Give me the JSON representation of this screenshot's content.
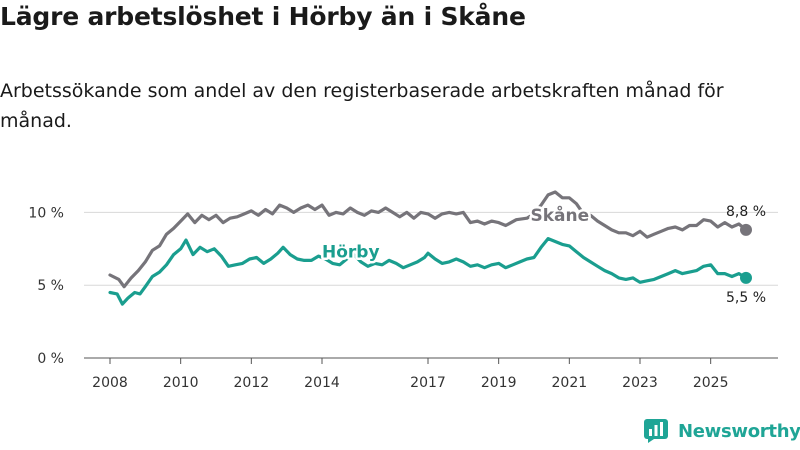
{
  "title": "Lägre arbetslöshet i Hörby än i Skåne",
  "subtitle": "Arbetssökande som andel av den registerbaserade arbetskraften månad för månad.",
  "brand": {
    "name": "Newsworthy",
    "color": "#1fa596"
  },
  "chart_data": {
    "type": "line",
    "ylim": [
      0,
      12.5
    ],
    "xlim": [
      2008,
      2026.6
    ],
    "y_ticks": [
      {
        "value": 0,
        "label": "0 %"
      },
      {
        "value": 5,
        "label": "5 %"
      },
      {
        "value": 10,
        "label": "10 %"
      }
    ],
    "x_ticks": [
      {
        "value": 2008,
        "label": "2008"
      },
      {
        "value": 2010,
        "label": "2010"
      },
      {
        "value": 2012,
        "label": "2012"
      },
      {
        "value": 2014,
        "label": "2014"
      },
      {
        "value": 2017,
        "label": "2017"
      },
      {
        "value": 2019,
        "label": "2019"
      },
      {
        "value": 2021,
        "label": "2021"
      },
      {
        "value": 2023,
        "label": "2023"
      },
      {
        "value": 2025,
        "label": "2025"
      }
    ],
    "grid": true,
    "series": [
      {
        "name": "Skåne",
        "color": "#76747a",
        "end_label": "8,8 %",
        "points": [
          [
            2008.0,
            5.7
          ],
          [
            2008.25,
            5.4
          ],
          [
            2008.4,
            4.9
          ],
          [
            2008.6,
            5.5
          ],
          [
            2008.8,
            6.0
          ],
          [
            2009.0,
            6.6
          ],
          [
            2009.2,
            7.4
          ],
          [
            2009.4,
            7.7
          ],
          [
            2009.6,
            8.5
          ],
          [
            2009.8,
            8.9
          ],
          [
            2010.0,
            9.4
          ],
          [
            2010.2,
            9.9
          ],
          [
            2010.4,
            9.3
          ],
          [
            2010.6,
            9.8
          ],
          [
            2010.8,
            9.5
          ],
          [
            2011.0,
            9.8
          ],
          [
            2011.2,
            9.3
          ],
          [
            2011.4,
            9.6
          ],
          [
            2011.6,
            9.7
          ],
          [
            2011.8,
            9.9
          ],
          [
            2012.0,
            10.1
          ],
          [
            2012.2,
            9.8
          ],
          [
            2012.4,
            10.2
          ],
          [
            2012.6,
            9.9
          ],
          [
            2012.8,
            10.5
          ],
          [
            2013.0,
            10.3
          ],
          [
            2013.2,
            10.0
          ],
          [
            2013.4,
            10.3
          ],
          [
            2013.6,
            10.5
          ],
          [
            2013.8,
            10.2
          ],
          [
            2014.0,
            10.5
          ],
          [
            2014.2,
            9.8
          ],
          [
            2014.4,
            10.0
          ],
          [
            2014.6,
            9.9
          ],
          [
            2014.8,
            10.3
          ],
          [
            2015.0,
            10.0
          ],
          [
            2015.2,
            9.8
          ],
          [
            2015.4,
            10.1
          ],
          [
            2015.6,
            10.0
          ],
          [
            2015.8,
            10.3
          ],
          [
            2016.0,
            10.0
          ],
          [
            2016.2,
            9.7
          ],
          [
            2016.4,
            10.0
          ],
          [
            2016.6,
            9.6
          ],
          [
            2016.8,
            10.0
          ],
          [
            2017.0,
            9.9
          ],
          [
            2017.2,
            9.6
          ],
          [
            2017.4,
            9.9
          ],
          [
            2017.6,
            10.0
          ],
          [
            2017.8,
            9.9
          ],
          [
            2018.0,
            10.0
          ],
          [
            2018.2,
            9.3
          ],
          [
            2018.4,
            9.4
          ],
          [
            2018.6,
            9.2
          ],
          [
            2018.8,
            9.4
          ],
          [
            2019.0,
            9.3
          ],
          [
            2019.2,
            9.1
          ],
          [
            2019.5,
            9.5
          ],
          [
            2019.8,
            9.6
          ],
          [
            2020.0,
            9.9
          ],
          [
            2020.2,
            10.5
          ],
          [
            2020.4,
            11.2
          ],
          [
            2020.6,
            11.4
          ],
          [
            2020.8,
            11.0
          ],
          [
            2021.0,
            11.0
          ],
          [
            2021.2,
            10.6
          ],
          [
            2021.4,
            9.9
          ],
          [
            2021.6,
            9.8
          ],
          [
            2021.8,
            9.4
          ],
          [
            2022.0,
            9.1
          ],
          [
            2022.2,
            8.8
          ],
          [
            2022.4,
            8.6
          ],
          [
            2022.6,
            8.6
          ],
          [
            2022.8,
            8.4
          ],
          [
            2023.0,
            8.7
          ],
          [
            2023.2,
            8.3
          ],
          [
            2023.4,
            8.5
          ],
          [
            2023.6,
            8.7
          ],
          [
            2023.8,
            8.9
          ],
          [
            2024.0,
            9.0
          ],
          [
            2024.2,
            8.8
          ],
          [
            2024.4,
            9.1
          ],
          [
            2024.6,
            9.1
          ],
          [
            2024.8,
            9.5
          ],
          [
            2025.0,
            9.4
          ],
          [
            2025.2,
            9.0
          ],
          [
            2025.4,
            9.3
          ],
          [
            2025.6,
            9.0
          ],
          [
            2025.8,
            9.2
          ],
          [
            2026.0,
            8.8
          ]
        ]
      },
      {
        "name": "Hörby",
        "color": "#1a9e8f",
        "end_label": "5,5 %",
        "points": [
          [
            2008.0,
            4.5
          ],
          [
            2008.2,
            4.4
          ],
          [
            2008.35,
            3.7
          ],
          [
            2008.5,
            4.1
          ],
          [
            2008.7,
            4.5
          ],
          [
            2008.85,
            4.4
          ],
          [
            2009.0,
            4.9
          ],
          [
            2009.2,
            5.6
          ],
          [
            2009.4,
            5.9
          ],
          [
            2009.6,
            6.4
          ],
          [
            2009.8,
            7.1
          ],
          [
            2010.0,
            7.5
          ],
          [
            2010.15,
            8.1
          ],
          [
            2010.35,
            7.1
          ],
          [
            2010.55,
            7.6
          ],
          [
            2010.75,
            7.3
          ],
          [
            2010.95,
            7.5
          ],
          [
            2011.15,
            7.0
          ],
          [
            2011.35,
            6.3
          ],
          [
            2011.55,
            6.4
          ],
          [
            2011.75,
            6.5
          ],
          [
            2011.95,
            6.8
          ],
          [
            2012.15,
            6.9
          ],
          [
            2012.35,
            6.5
          ],
          [
            2012.55,
            6.8
          ],
          [
            2012.75,
            7.2
          ],
          [
            2012.9,
            7.6
          ],
          [
            2013.1,
            7.1
          ],
          [
            2013.3,
            6.8
          ],
          [
            2013.5,
            6.7
          ],
          [
            2013.7,
            6.7
          ],
          [
            2013.9,
            7.0
          ],
          [
            2014.1,
            6.8
          ],
          [
            2014.3,
            6.5
          ],
          [
            2014.5,
            6.4
          ],
          [
            2014.7,
            6.8
          ],
          [
            2014.9,
            7.1
          ],
          [
            2015.1,
            6.6
          ],
          [
            2015.3,
            6.3
          ],
          [
            2015.5,
            6.5
          ],
          [
            2015.7,
            6.4
          ],
          [
            2015.9,
            6.7
          ],
          [
            2016.1,
            6.5
          ],
          [
            2016.3,
            6.2
          ],
          [
            2016.5,
            6.4
          ],
          [
            2016.7,
            6.6
          ],
          [
            2016.9,
            6.9
          ],
          [
            2017.0,
            7.2
          ],
          [
            2017.2,
            6.8
          ],
          [
            2017.4,
            6.5
          ],
          [
            2017.6,
            6.6
          ],
          [
            2017.8,
            6.8
          ],
          [
            2018.0,
            6.6
          ],
          [
            2018.2,
            6.3
          ],
          [
            2018.4,
            6.4
          ],
          [
            2018.6,
            6.2
          ],
          [
            2018.8,
            6.4
          ],
          [
            2019.0,
            6.5
          ],
          [
            2019.2,
            6.2
          ],
          [
            2019.4,
            6.4
          ],
          [
            2019.6,
            6.6
          ],
          [
            2019.8,
            6.8
          ],
          [
            2020.0,
            6.9
          ],
          [
            2020.2,
            7.6
          ],
          [
            2020.4,
            8.2
          ],
          [
            2020.6,
            8.0
          ],
          [
            2020.8,
            7.8
          ],
          [
            2021.0,
            7.7
          ],
          [
            2021.2,
            7.3
          ],
          [
            2021.4,
            6.9
          ],
          [
            2021.6,
            6.6
          ],
          [
            2021.8,
            6.3
          ],
          [
            2022.0,
            6.0
          ],
          [
            2022.2,
            5.8
          ],
          [
            2022.4,
            5.5
          ],
          [
            2022.6,
            5.4
          ],
          [
            2022.8,
            5.5
          ],
          [
            2023.0,
            5.2
          ],
          [
            2023.2,
            5.3
          ],
          [
            2023.4,
            5.4
          ],
          [
            2023.6,
            5.6
          ],
          [
            2023.8,
            5.8
          ],
          [
            2024.0,
            6.0
          ],
          [
            2024.2,
            5.8
          ],
          [
            2024.4,
            5.9
          ],
          [
            2024.6,
            6.0
          ],
          [
            2024.8,
            6.3
          ],
          [
            2025.0,
            6.4
          ],
          [
            2025.2,
            5.8
          ],
          [
            2025.4,
            5.8
          ],
          [
            2025.6,
            5.6
          ],
          [
            2025.8,
            5.8
          ],
          [
            2026.0,
            5.5
          ]
        ]
      }
    ],
    "annotations": [
      {
        "text": "Skåne",
        "series": "Skåne",
        "x": 2019.9,
        "y": 9.4
      },
      {
        "text": "Hörby",
        "series": "Hörby",
        "x": 2014.0,
        "y": 6.9
      }
    ]
  }
}
